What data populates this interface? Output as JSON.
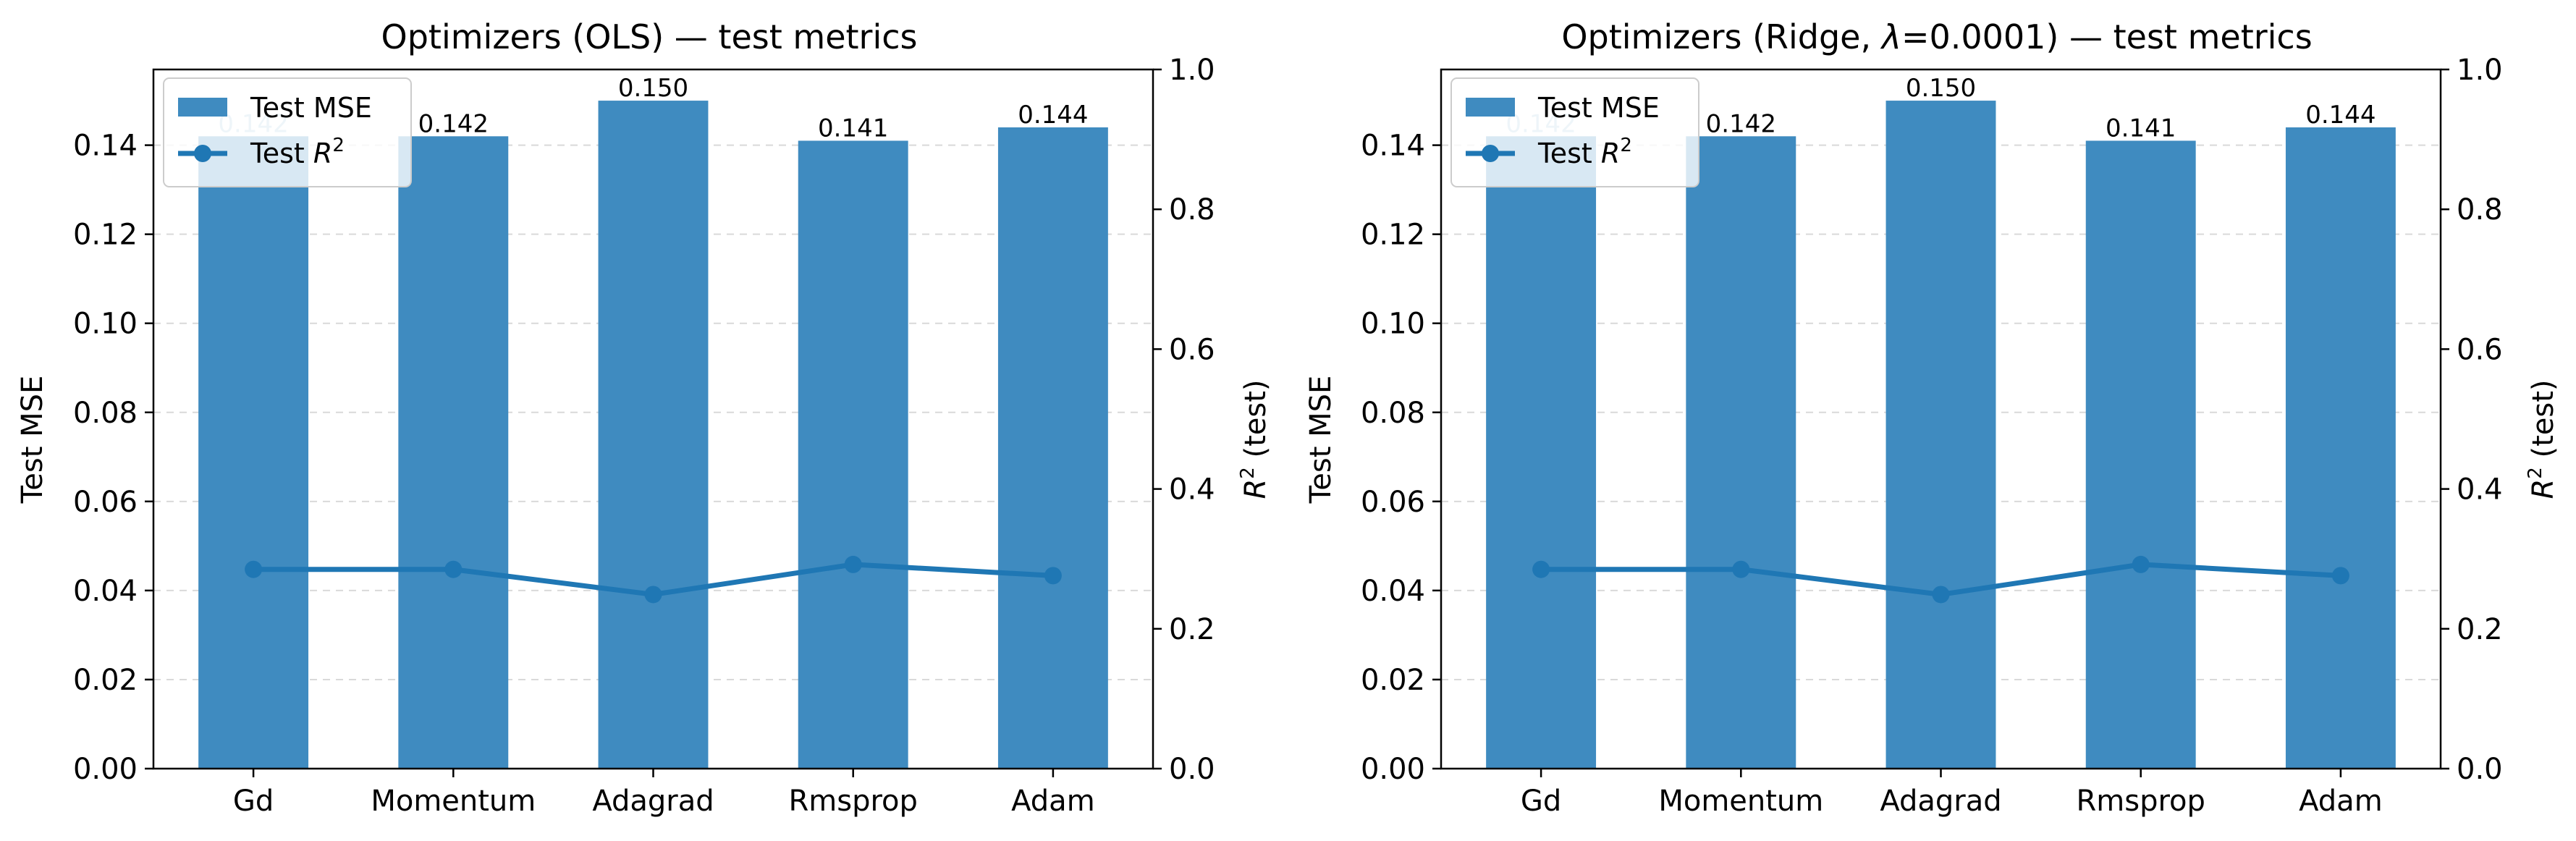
{
  "colors": {
    "bar": "#3f8bc0",
    "line": "#1f77b4",
    "grid": "#d9d9d9",
    "axis": "#000000",
    "bar_label_in_bar": "#a9cbe2"
  },
  "chart_data": [
    {
      "type": "bar",
      "title": "Optimizers (OLS) — test metrics",
      "categories": [
        "Gd",
        "Momentum",
        "Adagrad",
        "Rmsprop",
        "Adam"
      ],
      "ylabel": "Test MSE",
      "ylabel_right": "R² (test)",
      "ylim": [
        0,
        0.157
      ],
      "ylim_right": [
        0,
        1.0
      ],
      "yticks": [
        "0.00",
        "0.02",
        "0.04",
        "0.06",
        "0.08",
        "0.10",
        "0.12",
        "0.14"
      ],
      "yticks_right": [
        "0.0",
        "0.2",
        "0.4",
        "0.6",
        "0.8",
        "1.0"
      ],
      "grid": "horizontal dashed",
      "legend": "top-left",
      "legend_entries": [
        "Test MSE",
        "Test R²"
      ],
      "series": [
        {
          "name": "Test MSE",
          "type": "bar",
          "axis": "left",
          "values": [
            0.142,
            0.142,
            0.15,
            0.141,
            0.144
          ],
          "labels": [
            "0.142",
            "0.142",
            "0.150",
            "0.141",
            "0.144"
          ]
        },
        {
          "name": "Test R²",
          "type": "line",
          "axis": "right",
          "values": [
            0.285,
            0.285,
            0.249,
            0.292,
            0.276
          ]
        }
      ]
    },
    {
      "type": "bar",
      "title": "Optimizers (Ridge, λ=0.0001) — test metrics",
      "categories": [
        "Gd",
        "Momentum",
        "Adagrad",
        "Rmsprop",
        "Adam"
      ],
      "ylabel": "Test MSE",
      "ylabel_right": "R² (test)",
      "ylim": [
        0,
        0.157
      ],
      "ylim_right": [
        0,
        1.0
      ],
      "yticks": [
        "0.00",
        "0.02",
        "0.04",
        "0.06",
        "0.08",
        "0.10",
        "0.12",
        "0.14"
      ],
      "yticks_right": [
        "0.0",
        "0.2",
        "0.4",
        "0.6",
        "0.8",
        "1.0"
      ],
      "grid": "horizontal dashed",
      "legend": "top-left",
      "legend_entries": [
        "Test MSE",
        "Test R²"
      ],
      "series": [
        {
          "name": "Test MSE",
          "type": "bar",
          "axis": "left",
          "values": [
            0.142,
            0.142,
            0.15,
            0.141,
            0.144
          ],
          "labels": [
            "0.142",
            "0.142",
            "0.150",
            "0.141",
            "0.144"
          ]
        },
        {
          "name": "Test R²",
          "type": "line",
          "axis": "right",
          "values": [
            0.285,
            0.285,
            0.249,
            0.292,
            0.276
          ]
        }
      ]
    }
  ]
}
